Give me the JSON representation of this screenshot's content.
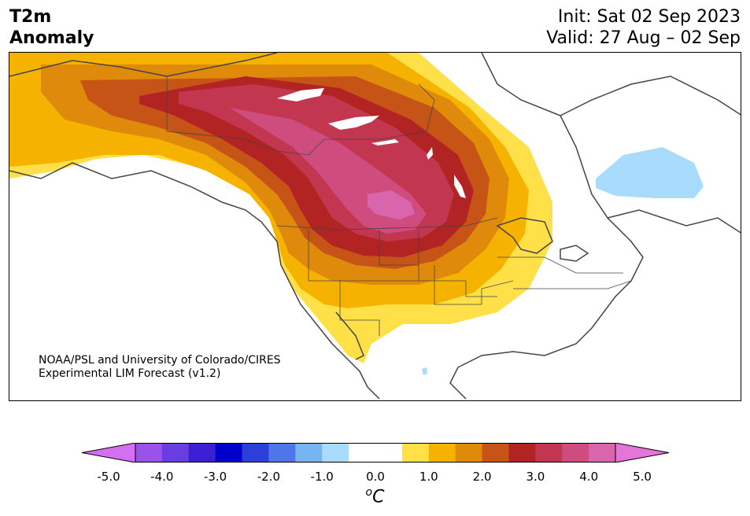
{
  "title": {
    "left_line1": "T2m",
    "left_line2": "Anomaly",
    "init": "Init: Sat 02 Sep 2023",
    "valid": "Valid: 27 Aug – 02 Sep"
  },
  "credit": {
    "line1": "NOAA/PSL and University of Colorado/CIRES",
    "line2": "Experimental LIM Forecast (v1.2)"
  },
  "colorbar": {
    "colors": [
      "#d36ff0",
      "#9b52e8",
      "#6a3de0",
      "#3c1fd4",
      "#0000cc",
      "#2c3fdb",
      "#4f76e8",
      "#77b4f2",
      "#a9dcfc",
      "#ffffff",
      "#ffffff",
      "#ffe048",
      "#f5b300",
      "#e08a0c",
      "#c75417",
      "#b22424",
      "#c33650",
      "#cf4d7e",
      "#d966ad",
      "#e575d9"
    ],
    "ticks": [
      "-5.0",
      "-4.0",
      "-3.0",
      "-2.0",
      "-1.0",
      "0.0",
      "1.0",
      "2.0",
      "3.0",
      "4.0",
      "5.0"
    ],
    "unit_base": "C",
    "unit_sup": "o"
  },
  "map_colors": {
    "y1": "#ffe048",
    "y2": "#f5b300",
    "o1": "#e08a0c",
    "o2": "#c75417",
    "r1": "#b22424",
    "r2": "#c33650",
    "p1": "#cf4d7e",
    "p2": "#d966ad",
    "cold": "#a9dcfc",
    "outline": "#444444"
  }
}
